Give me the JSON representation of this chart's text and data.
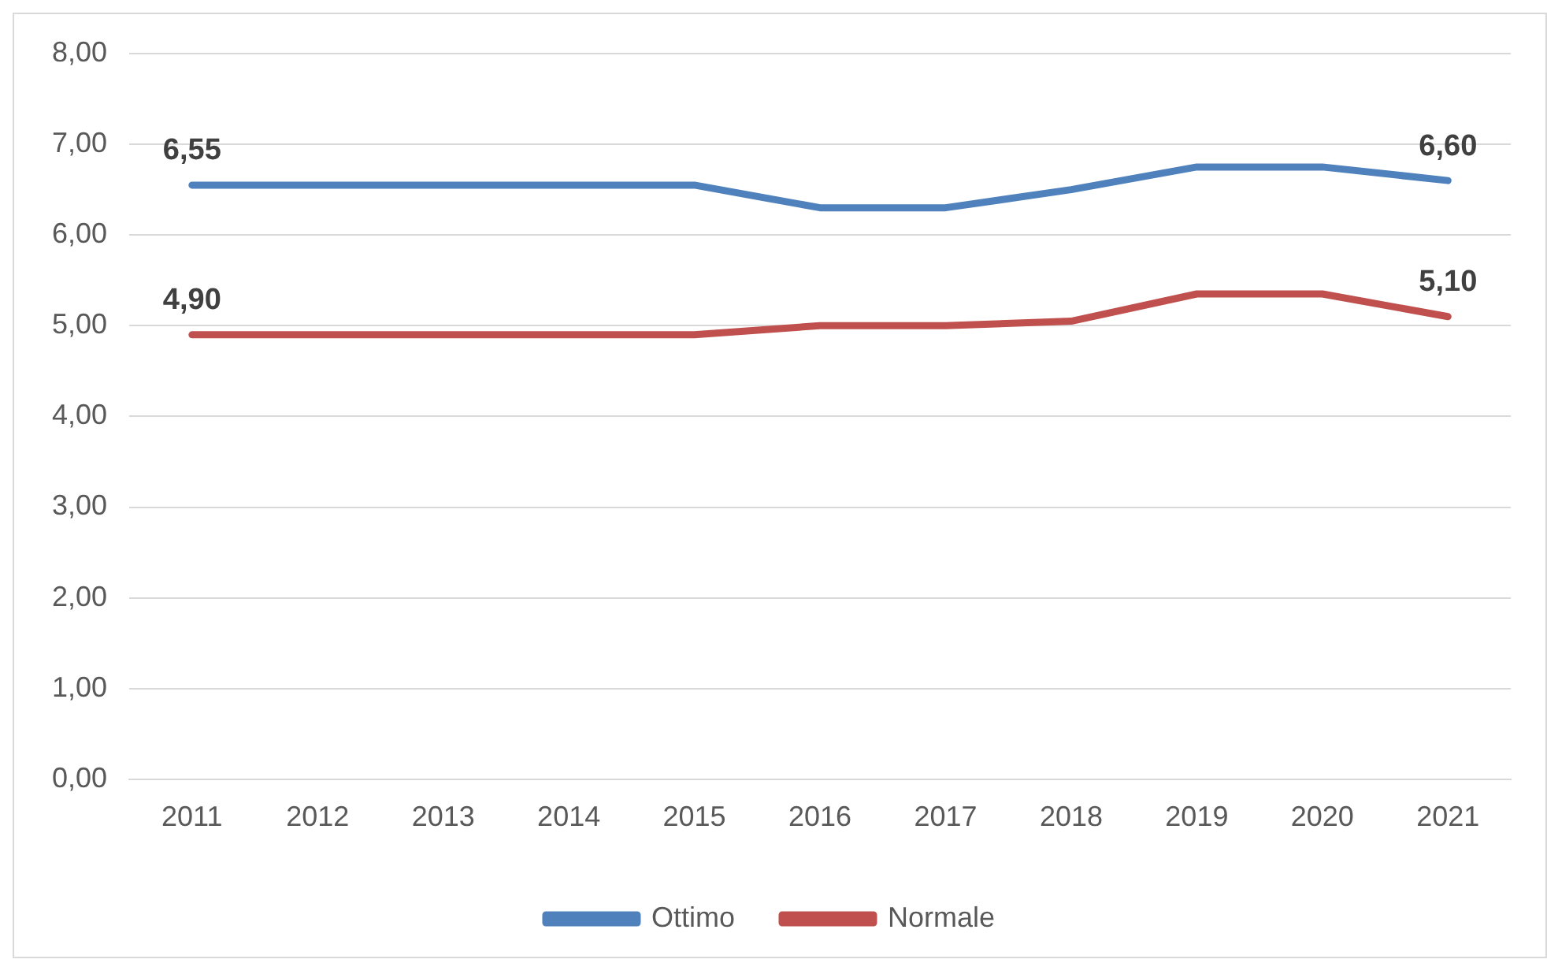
{
  "chart_data": {
    "type": "line",
    "categories": [
      "2011",
      "2012",
      "2013",
      "2014",
      "2015",
      "2016",
      "2017",
      "2018",
      "2019",
      "2020",
      "2021"
    ],
    "series": [
      {
        "name": "Ottimo",
        "color": "#4f81bd",
        "values": [
          6.55,
          6.55,
          6.55,
          6.55,
          6.55,
          6.3,
          6.3,
          6.5,
          6.75,
          6.75,
          6.6
        ],
        "value_labels": [
          "6,55",
          null,
          null,
          null,
          null,
          null,
          null,
          null,
          null,
          null,
          "6,60"
        ]
      },
      {
        "name": "Normale",
        "color": "#c0504d",
        "values": [
          4.9,
          4.9,
          4.9,
          4.9,
          4.9,
          5.0,
          5.0,
          5.05,
          5.35,
          5.35,
          5.1
        ],
        "value_labels": [
          "4,90",
          null,
          null,
          null,
          null,
          null,
          null,
          null,
          null,
          null,
          "5,10"
        ]
      }
    ],
    "ylim": [
      0,
      8
    ],
    "yticks": [
      {
        "value": 0,
        "label": "0,00"
      },
      {
        "value": 1,
        "label": "1,00"
      },
      {
        "value": 2,
        "label": "2,00"
      },
      {
        "value": 3,
        "label": "3,00"
      },
      {
        "value": 4,
        "label": "4,00"
      },
      {
        "value": 5,
        "label": "5,00"
      },
      {
        "value": 6,
        "label": "6,00"
      },
      {
        "value": 7,
        "label": "7,00"
      },
      {
        "value": 8,
        "label": "8,00"
      }
    ],
    "grid": "y",
    "legend": "bottom",
    "marker": "none",
    "line_style": "solid"
  }
}
